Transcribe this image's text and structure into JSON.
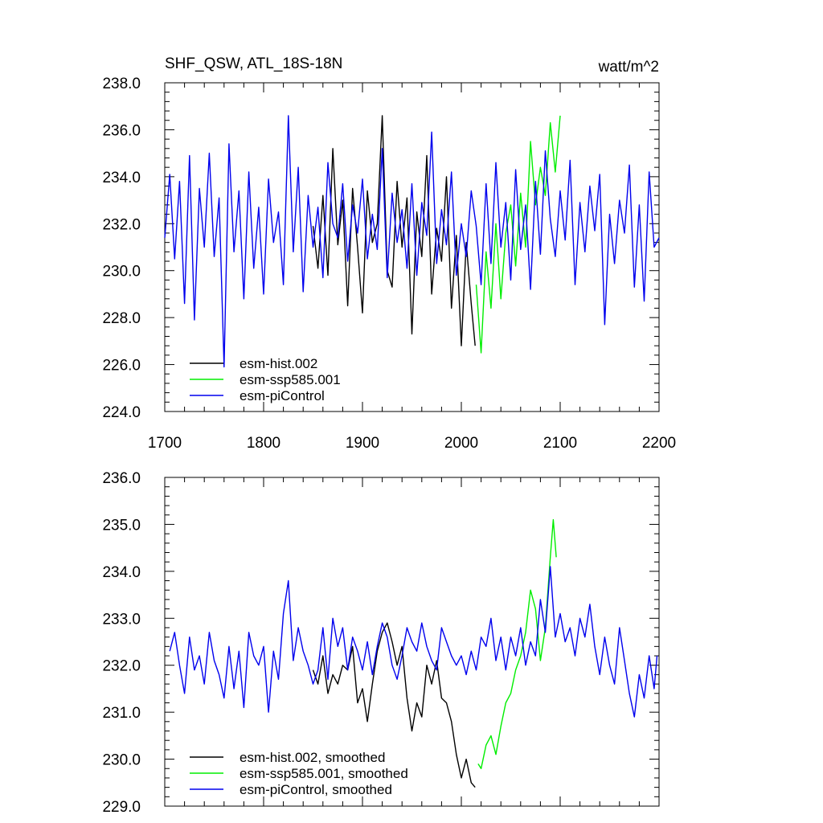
{
  "chart_data": [
    {
      "type": "line",
      "title": "SHF_QSW, ATL_18S-18N",
      "units": "watt/m^2",
      "xlim": [
        1700,
        2200
      ],
      "ylim": [
        224.0,
        238.0
      ],
      "x_ticks": [
        1700,
        1800,
        1900,
        2000,
        2100,
        2200
      ],
      "x_tick_labels": [
        "1700",
        "1800",
        "1900",
        "2000",
        "2100",
        "2200"
      ],
      "y_ticks": [
        224,
        226,
        228,
        230,
        232,
        234,
        236,
        238
      ],
      "y_tick_labels": [
        "224.0",
        "226.0",
        "228.0",
        "230.0",
        "232.0",
        "234.0",
        "236.0",
        "238.0"
      ],
      "legend_position": "bottom-left",
      "series": [
        {
          "name": "esm-hist.002",
          "color": "#000000",
          "x": [
            1850,
            1855,
            1860,
            1865,
            1870,
            1875,
            1880,
            1885,
            1890,
            1895,
            1900,
            1905,
            1910,
            1915,
            1920,
            1925,
            1930,
            1935,
            1940,
            1945,
            1950,
            1955,
            1960,
            1965,
            1970,
            1975,
            1980,
            1985,
            1990,
            1995,
            2000,
            2005,
            2010,
            2014
          ],
          "y": [
            231.9,
            230.1,
            233.2,
            229.8,
            235.2,
            231.1,
            233.0,
            228.5,
            233.5,
            231.0,
            228.2,
            233.4,
            231.2,
            232.0,
            236.6,
            230.0,
            229.3,
            233.8,
            231.0,
            233.1,
            227.3,
            232.5,
            230.6,
            234.9,
            229.0,
            231.8,
            230.4,
            234.0,
            228.4,
            231.5,
            226.8,
            231.2,
            228.6,
            226.8
          ]
        },
        {
          "name": "esm-ssp585.001",
          "color": "#00ee00",
          "x": [
            2015,
            2020,
            2025,
            2030,
            2035,
            2040,
            2045,
            2050,
            2055,
            2060,
            2065,
            2070,
            2075,
            2080,
            2085,
            2090,
            2095,
            2100
          ],
          "y": [
            229.4,
            226.5,
            230.8,
            228.4,
            232.0,
            228.8,
            231.6,
            232.8,
            230.2,
            233.3,
            231.0,
            235.5,
            232.8,
            234.4,
            233.2,
            236.3,
            234.2,
            236.6
          ]
        },
        {
          "name": "esm-piControl",
          "color": "#0000ee",
          "x": [
            1700,
            1705,
            1710,
            1715,
            1720,
            1725,
            1730,
            1735,
            1740,
            1745,
            1750,
            1755,
            1760,
            1765,
            1770,
            1775,
            1780,
            1785,
            1790,
            1795,
            1800,
            1805,
            1810,
            1815,
            1820,
            1825,
            1830,
            1835,
            1840,
            1845,
            1850,
            1855,
            1860,
            1865,
            1870,
            1875,
            1880,
            1885,
            1890,
            1895,
            1900,
            1905,
            1910,
            1915,
            1920,
            1925,
            1930,
            1935,
            1940,
            1945,
            1950,
            1955,
            1960,
            1965,
            1970,
            1975,
            1980,
            1985,
            1990,
            1995,
            2000,
            2005,
            2010,
            2015,
            2020,
            2025,
            2030,
            2035,
            2040,
            2045,
            2050,
            2055,
            2060,
            2065,
            2070,
            2075,
            2080,
            2085,
            2090,
            2095,
            2100,
            2105,
            2110,
            2115,
            2120,
            2125,
            2130,
            2135,
            2140,
            2145,
            2150,
            2155,
            2160,
            2165,
            2170,
            2175,
            2180,
            2185,
            2190,
            2195,
            2200
          ],
          "y": [
            231.4,
            234.1,
            230.5,
            233.8,
            228.6,
            234.9,
            227.9,
            233.5,
            231.0,
            235.0,
            230.6,
            233.1,
            225.9,
            235.4,
            230.8,
            233.4,
            228.8,
            234.2,
            230.1,
            232.7,
            229.0,
            233.9,
            231.2,
            232.5,
            229.4,
            236.6,
            230.8,
            234.4,
            229.1,
            233.2,
            231.0,
            232.7,
            229.7,
            234.6,
            232.0,
            231.4,
            233.7,
            230.4,
            232.8,
            231.6,
            233.9,
            230.5,
            232.4,
            230.9,
            235.2,
            229.7,
            233.3,
            231.2,
            232.6,
            230.1,
            233.7,
            229.8,
            232.9,
            231.5,
            235.9,
            230.3,
            232.6,
            231.1,
            234.2,
            229.8,
            232.0,
            230.6,
            233.4,
            231.9,
            229.4,
            233.7,
            230.3,
            234.6,
            231.0,
            232.9,
            229.6,
            234.3,
            230.9,
            232.8,
            229.2,
            233.8,
            230.7,
            235.1,
            232.2,
            230.6,
            233.4,
            231.3,
            234.7,
            229.4,
            232.9,
            230.8,
            233.6,
            231.7,
            234.1,
            227.7,
            232.4,
            230.3,
            233.0,
            231.6,
            234.5,
            229.3,
            232.8,
            228.7,
            234.2,
            231.0,
            231.4
          ]
        }
      ]
    },
    {
      "type": "line",
      "xlim": [
        1700,
        2200
      ],
      "ylim": [
        229.0,
        236.0
      ],
      "x_ticks": [
        1700,
        1800,
        1900,
        2000,
        2100,
        2200
      ],
      "y_ticks": [
        229,
        230,
        231,
        232,
        233,
        234,
        235,
        236
      ],
      "y_tick_labels": [
        "229.0",
        "230.0",
        "231.0",
        "232.0",
        "233.0",
        "234.0",
        "235.0",
        "236.0"
      ],
      "legend_position": "bottom-left",
      "series": [
        {
          "name": "esm-hist.002, smoothed",
          "color": "#000000",
          "x": [
            1850,
            1855,
            1860,
            1865,
            1870,
            1875,
            1880,
            1885,
            1890,
            1895,
            1900,
            1905,
            1910,
            1915,
            1920,
            1925,
            1930,
            1935,
            1940,
            1945,
            1950,
            1955,
            1960,
            1965,
            1970,
            1975,
            1980,
            1985,
            1990,
            1995,
            2000,
            2005,
            2010,
            2014
          ],
          "y": [
            231.9,
            231.6,
            232.2,
            231.4,
            231.8,
            231.6,
            232.0,
            231.9,
            232.4,
            231.2,
            231.5,
            230.8,
            231.6,
            232.3,
            232.7,
            232.9,
            232.5,
            232.0,
            232.4,
            231.3,
            230.6,
            231.2,
            230.9,
            232.0,
            231.6,
            232.1,
            231.3,
            231.2,
            230.8,
            230.1,
            229.6,
            230.0,
            229.5,
            229.4
          ]
        },
        {
          "name": "esm-ssp585.001, smoothed",
          "color": "#00ee00",
          "x": [
            2017,
            2020,
            2025,
            2030,
            2035,
            2040,
            2045,
            2050,
            2055,
            2060,
            2065,
            2070,
            2075,
            2080,
            2085,
            2090,
            2093,
            2096
          ],
          "y": [
            229.9,
            229.8,
            230.3,
            230.5,
            230.1,
            230.7,
            231.2,
            231.4,
            231.9,
            232.2,
            232.7,
            233.6,
            233.2,
            232.1,
            232.8,
            234.3,
            235.1,
            234.3
          ]
        },
        {
          "name": "esm-piControl, smoothed",
          "color": "#0000ee",
          "x": [
            1705,
            1710,
            1715,
            1720,
            1725,
            1730,
            1735,
            1740,
            1745,
            1750,
            1755,
            1760,
            1765,
            1770,
            1775,
            1780,
            1785,
            1790,
            1795,
            1800,
            1805,
            1810,
            1815,
            1820,
            1825,
            1830,
            1835,
            1840,
            1845,
            1850,
            1855,
            1860,
            1865,
            1870,
            1875,
            1880,
            1885,
            1890,
            1895,
            1900,
            1905,
            1910,
            1915,
            1920,
            1925,
            1930,
            1935,
            1940,
            1945,
            1950,
            1955,
            1960,
            1965,
            1970,
            1975,
            1980,
            1985,
            1990,
            1995,
            2000,
            2005,
            2010,
            2015,
            2020,
            2025,
            2030,
            2035,
            2040,
            2045,
            2050,
            2055,
            2060,
            2065,
            2070,
            2075,
            2080,
            2085,
            2090,
            2095,
            2100,
            2105,
            2110,
            2115,
            2120,
            2125,
            2130,
            2135,
            2140,
            2145,
            2150,
            2155,
            2160,
            2165,
            2170,
            2175,
            2180,
            2185,
            2190,
            2195,
            2198
          ],
          "y": [
            232.3,
            232.7,
            232.0,
            231.4,
            232.6,
            231.9,
            232.2,
            231.6,
            232.7,
            232.1,
            231.8,
            231.3,
            232.4,
            231.5,
            232.3,
            231.1,
            232.7,
            232.2,
            232.0,
            232.4,
            231.0,
            232.3,
            231.7,
            233.1,
            233.8,
            232.1,
            232.8,
            232.3,
            232.0,
            231.6,
            231.9,
            232.8,
            231.7,
            233.0,
            232.4,
            232.8,
            231.9,
            232.6,
            232.3,
            231.9,
            232.5,
            231.8,
            232.4,
            232.9,
            232.6,
            232.0,
            231.7,
            232.2,
            232.8,
            232.5,
            232.3,
            232.9,
            232.4,
            232.1,
            231.9,
            232.8,
            232.5,
            232.2,
            232.0,
            232.2,
            231.8,
            232.3,
            231.9,
            232.6,
            232.4,
            233.0,
            232.1,
            232.6,
            231.9,
            232.6,
            232.2,
            232.8,
            232.0,
            232.5,
            232.2,
            233.4,
            232.7,
            234.1,
            232.6,
            233.1,
            232.5,
            232.8,
            232.2,
            233.0,
            232.6,
            233.3,
            232.4,
            231.8,
            232.6,
            232.0,
            231.6,
            232.8,
            232.1,
            231.4,
            230.9,
            231.8,
            231.3,
            232.2,
            231.5,
            232.2
          ]
        }
      ]
    }
  ]
}
